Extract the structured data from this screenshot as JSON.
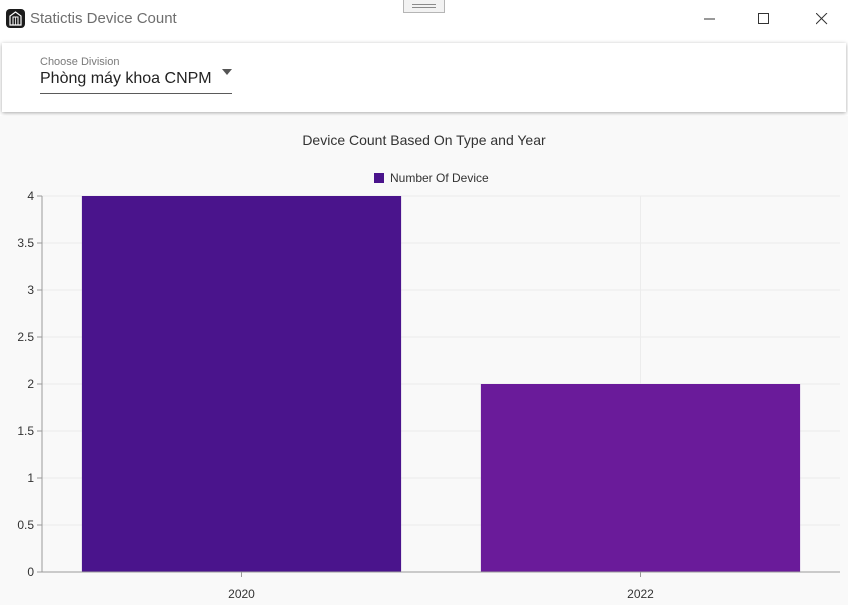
{
  "window": {
    "title": "Statictis Device Count",
    "icons": {
      "app": "building-icon",
      "minimize": "minimize-icon",
      "maximize": "maximize-icon",
      "close": "close-icon"
    }
  },
  "division": {
    "label": "Choose Division",
    "value": "Phòng máy khoa CNPM"
  },
  "chart_data": {
    "type": "bar",
    "title": "Device Count Based On Type and Year",
    "categories": [
      "2020",
      "2022"
    ],
    "series": [
      {
        "name": "Number Of Device",
        "values": [
          4,
          2
        ]
      }
    ],
    "bar_colors": [
      "#4a148c",
      "#6a1b9a"
    ],
    "legend_color": "#4a148c",
    "ylim": [
      0,
      4
    ],
    "yticks": [
      "0",
      "0.5",
      "1",
      "1.5",
      "2",
      "2.5",
      "3",
      "3.5",
      "4"
    ],
    "grid": true,
    "legend_position": "top-center"
  }
}
